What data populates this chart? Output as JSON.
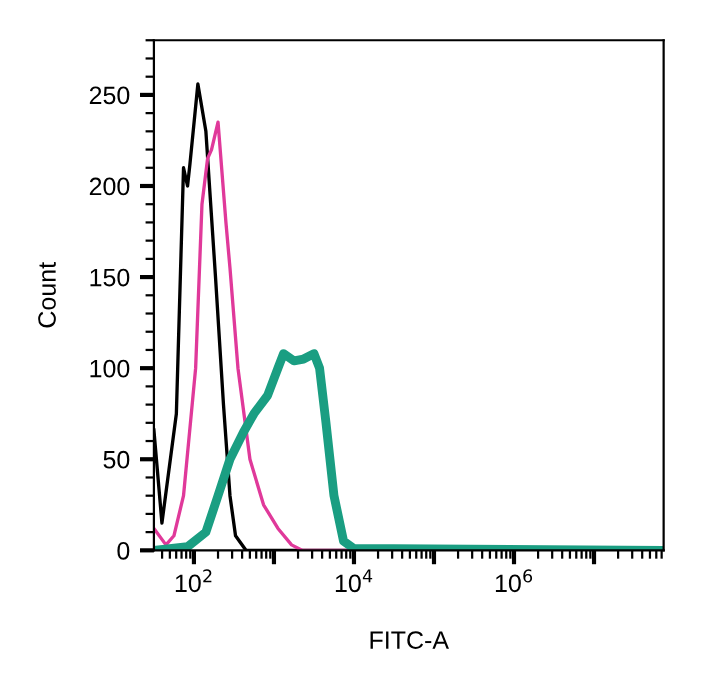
{
  "chart_data": {
    "type": "line",
    "xlabel": "FITC-A",
    "ylabel": "Count",
    "log": "x",
    "grid": false,
    "legend": false,
    "marker": "none",
    "line_style": "solid",
    "xlim": [
      31.6,
      74131000
    ],
    "ylim": [
      0,
      280
    ],
    "xticks": [
      {
        "value": 100,
        "label": "10$^{2}$"
      },
      {
        "value": 1000,
        "label": null
      },
      {
        "value": 10000,
        "label": "10$^{4}$"
      },
      {
        "value": 100000,
        "label": null
      },
      {
        "value": 1000000,
        "label": "10$^{6}$"
      },
      {
        "value": 10000000,
        "label": null
      }
    ],
    "yticks": [
      0,
      50,
      100,
      150,
      200,
      250
    ],
    "series": [
      {
        "color": "#000000",
        "x": [
          31.6,
          39.8,
          60.3,
          74.1,
          83.2,
          89.1,
          112,
          141,
          186,
          234,
          282,
          331,
          447,
          74131000
        ],
        "values": [
          66,
          15,
          75,
          210,
          200,
          212,
          256,
          230,
          150,
          80,
          30,
          8,
          0,
          0
        ]
      },
      {
        "color": "#e0399a",
        "x": [
          31.6,
          44.7,
          56.2,
          74.1,
          105,
          126,
          148,
          166,
          200,
          251,
          282,
          355,
          501,
          741,
          1122,
          1660,
          2239,
          74131000
        ],
        "values": [
          12,
          3,
          8,
          30,
          100,
          190,
          215,
          220,
          235,
          180,
          155,
          100,
          50,
          25,
          12,
          3,
          0,
          0
        ]
      },
      {
        "color": "#1a9e82",
        "x": [
          31.6,
          83.2,
          141,
          200,
          282,
          417,
          562,
          832,
          1122,
          1318,
          1778,
          2344,
          3162,
          3715,
          4467,
          5623,
          7413,
          10000,
          74131000
        ],
        "values": [
          0,
          2,
          10,
          30,
          50,
          65,
          75,
          85,
          100,
          108,
          104,
          105,
          108,
          100,
          70,
          30,
          5,
          1,
          0
        ]
      }
    ]
  }
}
